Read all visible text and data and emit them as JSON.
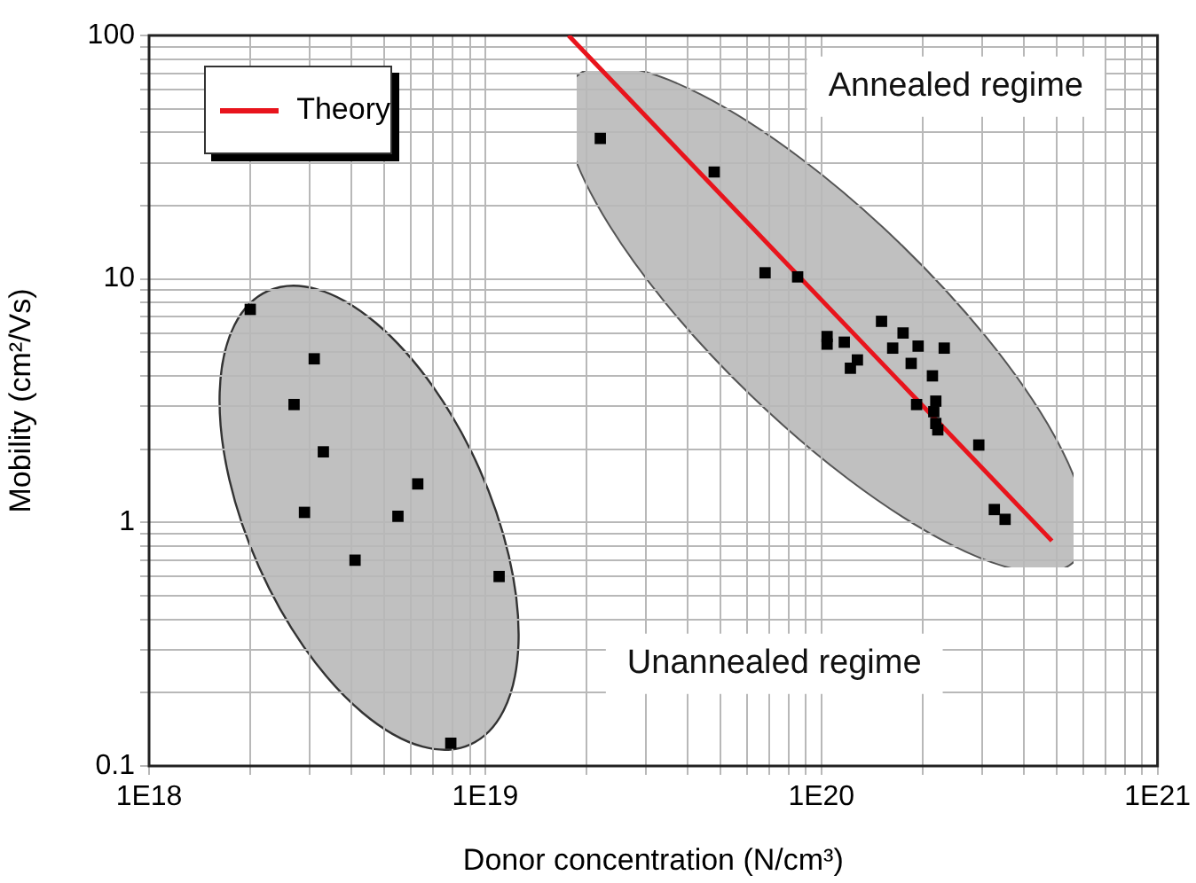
{
  "chart_data": {
    "type": "scatter",
    "xlabel": "Donor concentration (N/cm³)",
    "ylabel": "Mobility (cm²/Vs)",
    "annotations": [
      "Annealed regime",
      "Unannealed regime"
    ],
    "log": "xy",
    "xlim": [
      1e+18,
      1e+21
    ],
    "ylim": [
      0.1,
      100
    ],
    "xticks": [
      {
        "value": 1e+18,
        "label": "1E18"
      },
      {
        "value": 2e+18,
        "label": null
      },
      {
        "value": 3e+18,
        "label": null
      },
      {
        "value": 4e+18,
        "label": null
      },
      {
        "value": 5e+18,
        "label": null
      },
      {
        "value": 6e+18,
        "label": null
      },
      {
        "value": 7e+18,
        "label": null
      },
      {
        "value": 8e+18,
        "label": null
      },
      {
        "value": 9e+18,
        "label": null
      },
      {
        "value": 1e+19,
        "label": "1E19"
      },
      {
        "value": 2e+19,
        "label": null
      },
      {
        "value": 3e+19,
        "label": null
      },
      {
        "value": 4e+19,
        "label": null
      },
      {
        "value": 5e+19,
        "label": null
      },
      {
        "value": 6e+19,
        "label": null
      },
      {
        "value": 7e+19,
        "label": null
      },
      {
        "value": 8e+19,
        "label": null
      },
      {
        "value": 9e+19,
        "label": null
      },
      {
        "value": 1e+20,
        "label": "1E20"
      },
      {
        "value": 2e+20,
        "label": null
      },
      {
        "value": 3e+20,
        "label": null
      },
      {
        "value": 4e+20,
        "label": null
      },
      {
        "value": 5e+20,
        "label": null
      },
      {
        "value": 6e+20,
        "label": null
      },
      {
        "value": 7e+20,
        "label": null
      },
      {
        "value": 8e+20,
        "label": null
      },
      {
        "value": 9e+20,
        "label": null
      },
      {
        "value": 1e+21,
        "label": "1E21"
      }
    ],
    "yticks": [
      0.1,
      {
        "value": 0.2,
        "label": null
      },
      {
        "value": 0.3,
        "label": null
      },
      {
        "value": 0.4,
        "label": null
      },
      {
        "value": 0.5,
        "label": null
      },
      {
        "value": 0.6,
        "label": null
      },
      {
        "value": 0.7,
        "label": null
      },
      {
        "value": 0.8,
        "label": null
      },
      {
        "value": 0.9,
        "label": null
      },
      1,
      {
        "value": 2,
        "label": null
      },
      {
        "value": 3,
        "label": null
      },
      {
        "value": 4,
        "label": null
      },
      {
        "value": 5,
        "label": null
      },
      {
        "value": 6,
        "label": null
      },
      {
        "value": 7,
        "label": null
      },
      {
        "value": 8,
        "label": null
      },
      {
        "value": 9,
        "label": null
      },
      10,
      {
        "value": 20,
        "label": null
      },
      {
        "value": 30,
        "label": null
      },
      {
        "value": 40,
        "label": null
      },
      {
        "value": 50,
        "label": null
      },
      {
        "value": 60,
        "label": null
      },
      {
        "value": 70,
        "label": null
      },
      {
        "value": 80,
        "label": null
      },
      {
        "value": 90,
        "label": null
      },
      100
    ],
    "grid": true,
    "legend": "top left",
    "marker": "square",
    "series": [
      {
        "color": "#000000",
        "x": [
          2e+18,
          2.7e+18,
          3.1e+18,
          3.3e+18,
          2.9e+18,
          4.1e+18,
          5.5e+18,
          6.3e+18,
          7.9e+18,
          1.1e+19,
          2.2e+19,
          4.8e+19,
          6.8e+19,
          8.5e+19,
          1.04e+20,
          1.04e+20,
          1.17e+20,
          1.28e+20,
          1.22e+20,
          1.51e+20,
          1.75e+20,
          1.63e+20,
          1.94e+20,
          1.85e+20,
          2.32e+20,
          2.14e+20,
          2.19e+20,
          1.92e+20,
          2.16e+20,
          2.19e+20,
          2.22e+20,
          2.94e+20,
          3.27e+20,
          3.52e+20
        ],
        "values": [
          7.5,
          3.05,
          4.7,
          1.95,
          1.1,
          0.7,
          1.06,
          1.44,
          0.124,
          0.6,
          37.8,
          27.5,
          10.6,
          10.2,
          5.8,
          5.4,
          5.5,
          4.65,
          4.3,
          6.7,
          6.0,
          5.2,
          5.3,
          4.5,
          5.2,
          4.0,
          3.15,
          3.05,
          2.85,
          2.55,
          2.4,
          2.08,
          1.13,
          1.03
        ]
      },
      {
        "type": "line",
        "name": "Theory",
        "color": "#e8141c",
        "marker": "none",
        "x": [
          1.77e+19,
          4.85e+20
        ],
        "values": [
          100,
          0.84
        ]
      }
    ]
  }
}
